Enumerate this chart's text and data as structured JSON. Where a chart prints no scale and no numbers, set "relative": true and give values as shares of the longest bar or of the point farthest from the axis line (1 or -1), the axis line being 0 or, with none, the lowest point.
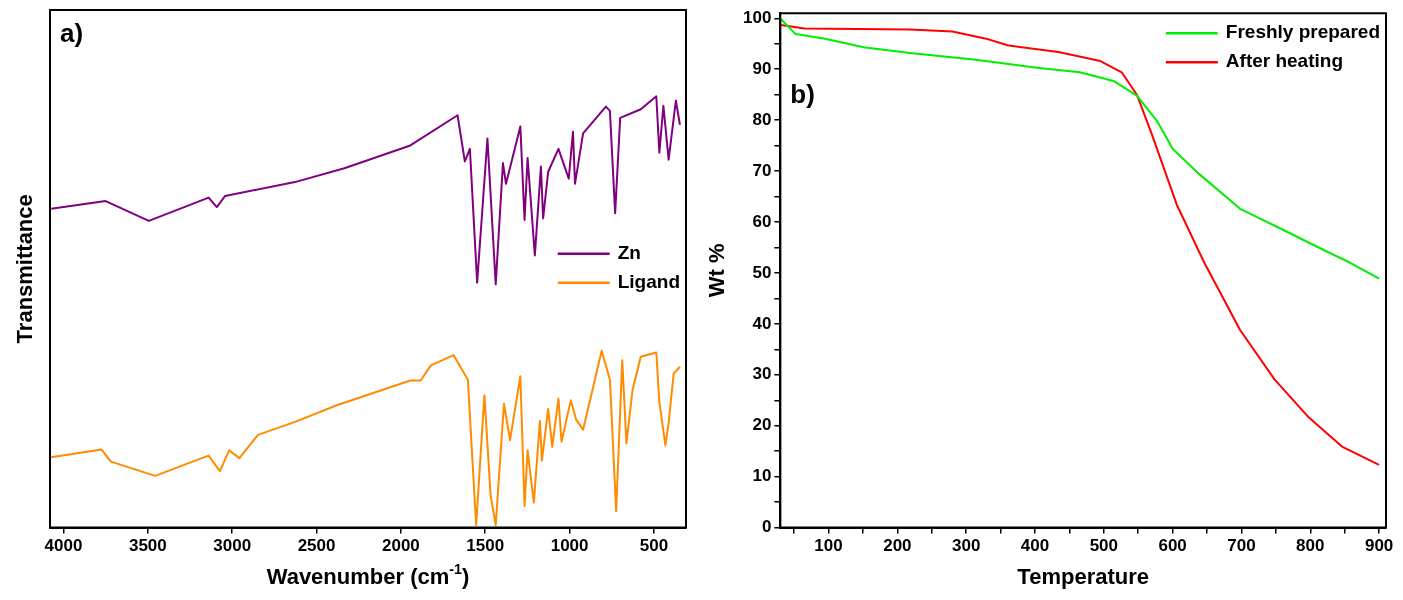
{
  "chart_data": [
    {
      "type": "line",
      "relative": true,
      "xlabel": "Wavenumber (cm$^{-1}$)",
      "ylabel": "Transmittance",
      "annotations": [
        "a)"
      ],
      "xlim": [
        4080,
        310
      ],
      "xticks": [
        4000,
        3500,
        3000,
        2500,
        2000,
        1500,
        1000,
        500
      ],
      "tick_labels": "x",
      "legend": "right",
      "grid": false,
      "series": [
        {
          "name": "Zn",
          "color": "#800080",
          "x": [
            4073,
            3750,
            3494,
            3140,
            3091,
            3042,
            2628,
            2335,
            1944,
            1664,
            1621,
            1591,
            1548,
            1487,
            1438,
            1395,
            1377,
            1292,
            1267,
            1249,
            1206,
            1170,
            1157,
            1127,
            1066,
            1005,
            980,
            968,
            920,
            785,
            761,
            730,
            700,
            578,
            486,
            468,
            444,
            413,
            370,
            346
          ],
          "values": [
            0.739,
            0.757,
            0.711,
            0.765,
            0.743,
            0.769,
            0.801,
            0.833,
            0.886,
            0.956,
            0.849,
            0.878,
            0.568,
            0.902,
            0.564,
            0.845,
            0.797,
            0.93,
            0.713,
            0.857,
            0.631,
            0.837,
            0.717,
            0.825,
            0.878,
            0.809,
            0.918,
            0.797,
            0.914,
            0.976,
            0.966,
            0.729,
            0.95,
            0.97,
            1,
            0.869,
            0.978,
            0.853,
            0.99,
            0.934
          ]
        },
        {
          "name": "Ligand",
          "color": "#ff8c00",
          "x": [
            4073,
            3774,
            3719,
            3457,
            3140,
            3073,
            3018,
            2957,
            2896,
            2847,
            2628,
            2384,
            1944,
            1883,
            1822,
            1688,
            1603,
            1554,
            1505,
            1468,
            1438,
            1389,
            1353,
            1292,
            1267,
            1249,
            1212,
            1176,
            1164,
            1127,
            1103,
            1066,
            1048,
            993,
            962,
            920,
            810,
            761,
            724,
            688,
            663,
            627,
            578,
            486,
            468,
            432,
            413,
            383,
            346
          ],
          "values": [
            0.163,
            0.181,
            0.153,
            0.12,
            0.167,
            0.131,
            0.179,
            0.161,
            0.191,
            0.215,
            0.245,
            0.283,
            0.341,
            0.341,
            0.376,
            0.4,
            0.343,
            0.006,
            0.307,
            0.074,
            0.006,
            0.287,
            0.203,
            0.351,
            0.05,
            0.179,
            0.058,
            0.247,
            0.155,
            0.275,
            0.187,
            0.299,
            0.199,
            0.295,
            0.251,
            0.227,
            0.41,
            0.343,
            0.038,
            0.388,
            0.195,
            0.319,
            0.396,
            0.406,
            0.291,
            0.191,
            0.243,
            0.357,
            0.373
          ]
        }
      ]
    },
    {
      "type": "line",
      "xlabel": "Temperature",
      "ylabel": "Wt %",
      "annotations": [
        "b)"
      ],
      "xlim": [
        30,
        910
      ],
      "ylim": [
        0,
        101
      ],
      "xticks": [
        {
          "value": 50,
          "label": null
        },
        100,
        {
          "value": 150,
          "label": null
        },
        200,
        {
          "value": 250,
          "label": null
        },
        300,
        {
          "value": 350,
          "label": null
        },
        400,
        {
          "value": 450,
          "label": null
        },
        500,
        {
          "value": 550,
          "label": null
        },
        600,
        {
          "value": 650,
          "label": null
        },
        700,
        {
          "value": 750,
          "label": null
        },
        800,
        {
          "value": 850,
          "label": null
        },
        900
      ],
      "yticks": [
        0,
        {
          "value": 5,
          "label": null
        },
        10,
        {
          "value": 15,
          "label": null
        },
        20,
        {
          "value": 25,
          "label": null
        },
        30,
        {
          "value": 35,
          "label": null
        },
        40,
        {
          "value": 45,
          "label": null
        },
        50,
        {
          "value": 55,
          "label": null
        },
        60,
        {
          "value": 65,
          "label": null
        },
        70,
        {
          "value": 75,
          "label": null
        },
        80,
        {
          "value": 85,
          "label": null
        },
        90,
        {
          "value": 95,
          "label": null
        },
        100
      ],
      "legend": "top right",
      "grid": false,
      "series": [
        {
          "name": "Freshly prepared",
          "color": "#00ee00",
          "x": [
            31,
            52,
            95,
            151,
            218,
            311,
            403,
            465,
            514,
            548,
            578,
            600,
            637,
            698,
            772,
            818,
            858,
            900
          ],
          "values": [
            99.8,
            96.9,
            96.0,
            94.3,
            93.2,
            91.9,
            90.3,
            89.4,
            87.7,
            84.8,
            79.7,
            74.4,
            69.6,
            62.6,
            57.7,
            54.6,
            52.0,
            48.9
          ]
        },
        {
          "name": "After heating",
          "color": "#ff0000",
          "x": [
            31,
            65,
            218,
            280,
            329,
            360,
            434,
            495,
            526,
            548,
            569,
            606,
            646,
            698,
            748,
            798,
            846,
            900
          ],
          "values": [
            98.7,
            98.0,
            97.8,
            97.4,
            96.0,
            94.7,
            93.4,
            91.6,
            89.4,
            85.0,
            77.5,
            63.4,
            52.0,
            38.8,
            29.1,
            21.6,
            15.9,
            12.3
          ]
        }
      ]
    }
  ]
}
